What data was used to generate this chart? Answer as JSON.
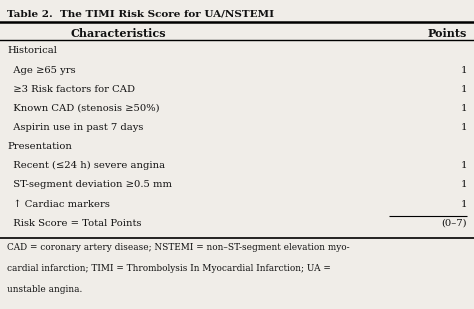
{
  "title": "Table 2.  The TIMI Risk Score for UA/NSTEMI",
  "header": [
    "Characteristics",
    "Points"
  ],
  "rows": [
    {
      "text": "Historical",
      "indent": 0,
      "point": "",
      "is_section": true,
      "underline_point": false
    },
    {
      "text": "  Age ≥65 yrs",
      "indent": 1,
      "point": "1",
      "is_section": false,
      "underline_point": false
    },
    {
      "text": "  ≥3 Risk factors for CAD",
      "indent": 1,
      "point": "1",
      "is_section": false,
      "underline_point": false
    },
    {
      "text": "  Known CAD (stenosis ≥50%)",
      "indent": 1,
      "point": "1",
      "is_section": false,
      "underline_point": false
    },
    {
      "text": "  Aspirin use in past 7 days",
      "indent": 1,
      "point": "1",
      "is_section": false,
      "underline_point": false
    },
    {
      "text": "Presentation",
      "indent": 0,
      "point": "",
      "is_section": true,
      "underline_point": false
    },
    {
      "text": "  Recent (≤24 h) severe angina",
      "indent": 1,
      "point": "1",
      "is_section": false,
      "underline_point": false
    },
    {
      "text": "  ST-segment deviation ≥0.5 mm",
      "indent": 1,
      "point": "1",
      "is_section": false,
      "underline_point": false
    },
    {
      "text": "  ↑ Cardiac markers",
      "indent": 1,
      "point": "1",
      "is_section": false,
      "underline_point": false
    },
    {
      "text": "  Risk Score = Total Points",
      "indent": 1,
      "point": "(0–7)",
      "is_section": false,
      "underline_point": true
    }
  ],
  "footnote_lines": [
    "CAD = coronary artery disease; NSTEMI = non–ST-segment elevation myo-",
    "cardial infarction; TIMI = Thrombolysis In Myocardial Infarction; UA =",
    "unstable angina."
  ],
  "bg_color": "#f0ede8",
  "text_color": "#111111",
  "font_size": 7.2,
  "header_font_size": 8.0,
  "title_font_size": 7.5,
  "footnote_font_size": 6.4
}
